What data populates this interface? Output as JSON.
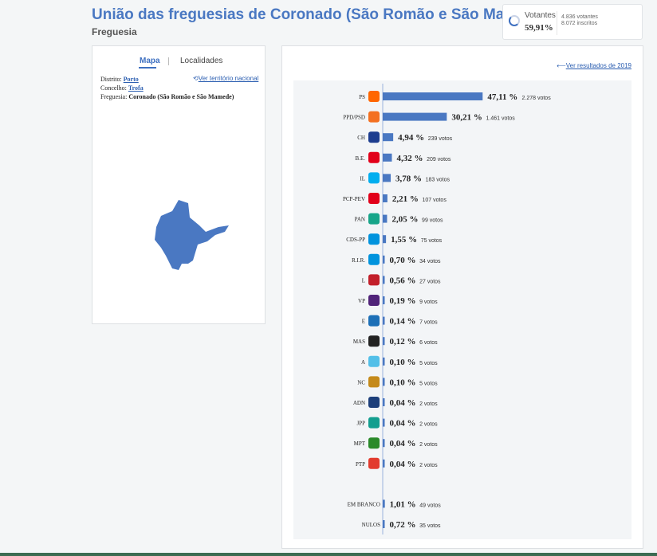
{
  "header": {
    "title": "União das freguesias de Coronado (São Romão e São Mamede)",
    "subtitle": "Freguesia"
  },
  "turnout": {
    "label": "Votantes",
    "percent": "59,91%",
    "percent_value": 59.91,
    "votantes": "4.836 votantes",
    "inscritos": "8.072 inscritos"
  },
  "left": {
    "tab_map": "Mapa",
    "tab_localidades": "Localidades",
    "distrito_label": "Distrito:",
    "distrito": "Porto",
    "concelho_label": "Concelho:",
    "concelho": "Trofa",
    "freguesia_label": "Freguesia:",
    "freguesia": "Coronado (São Romão e São Mamede)",
    "national_link": "Ver território nacional"
  },
  "right": {
    "previous_link": "Ver resultados de 2019"
  },
  "colors": {
    "bar": "#4a78c2",
    "accent": "#3d6fc0"
  },
  "chart_data": {
    "type": "bar",
    "orientation": "horizontal",
    "categories": [
      "PS",
      "PPD/PSD",
      "CH",
      "B.E.",
      "IL",
      "PCP-PEV",
      "PAN",
      "CDS-PP",
      "R.I.R.",
      "L",
      "VP",
      "E",
      "MAS",
      "A",
      "NC",
      "ADN",
      "JPP",
      "MPT",
      "PTP",
      "EM BRANCO",
      "NULOS"
    ],
    "values": [
      47.11,
      30.21,
      4.94,
      4.32,
      3.78,
      2.21,
      2.05,
      1.55,
      0.7,
      0.56,
      0.19,
      0.14,
      0.12,
      0.1,
      0.1,
      0.04,
      0.04,
      0.04,
      0.04,
      1.01,
      0.72
    ],
    "percent_labels": [
      "47,11 %",
      "30,21 %",
      "4,94 %",
      "4,32 %",
      "3,78 %",
      "2,21 %",
      "2,05 %",
      "1,55 %",
      "0,70 %",
      "0,56 %",
      "0,19 %",
      "0,14 %",
      "0,12 %",
      "0,10 %",
      "0,10 %",
      "0,04 %",
      "0,04 %",
      "0,04 %",
      "0,04 %",
      "1,01 %",
      "0,72 %"
    ],
    "vote_labels": [
      "2.278 votos",
      "1.461 votos",
      "239 votos",
      "209 votos",
      "183 votos",
      "107 votos",
      "99 votos",
      "75 votos",
      "34 votos",
      "27 votos",
      "9 votos",
      "7 votos",
      "6 votos",
      "5 votos",
      "5 votos",
      "2 votos",
      "2 votos",
      "2 votos",
      "2 votos",
      "49 votos",
      "35 votos"
    ],
    "icons": [
      "ps-logo-icon",
      "psd-logo-icon",
      "chega-logo-icon",
      "be-logo-icon",
      "il-logo-icon",
      "pcp-pev-logo-icon",
      "pan-logo-icon",
      "cds-logo-icon",
      "rir-logo-icon",
      "livre-logo-icon",
      "volt-logo-icon",
      "ergue-te-logo-icon",
      "mas-logo-icon",
      "alianca-logo-icon",
      "nc-logo-icon",
      "adn-logo-icon",
      "jpp-logo-icon",
      "mpt-logo-icon",
      "ptp-logo-icon",
      "",
      ""
    ],
    "icon_colors": [
      "#ff6600",
      "#f37021",
      "#1d3d8f",
      "#e2001a",
      "#00aeef",
      "#e2001a",
      "#17a589",
      "#0093dd",
      "#0093dd",
      "#c21f2a",
      "#502379",
      "#1c6fb7",
      "#222222",
      "#52bfe8",
      "#c58a1a",
      "#1d3f7a",
      "#139e8f",
      "#2a8a2a",
      "#e23b2e",
      "",
      ""
    ],
    "xlim": [
      0,
      100
    ]
  }
}
